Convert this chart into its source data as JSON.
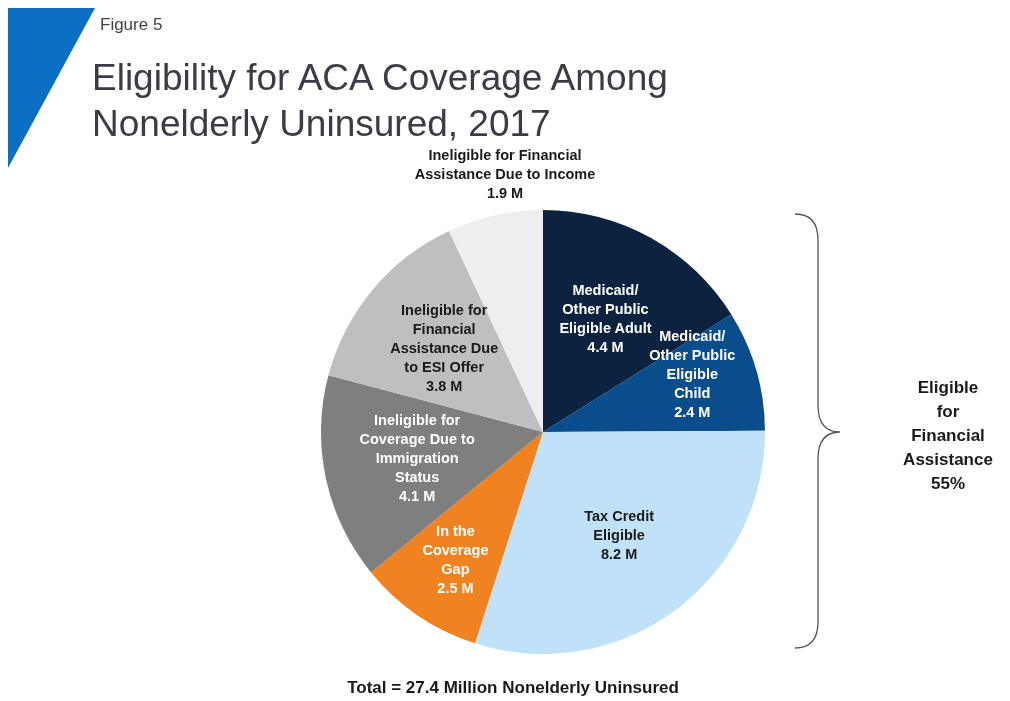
{
  "chart_data": {
    "type": "pie",
    "subtitle": "Figure 5",
    "title": "Eligibility for ACA Coverage Among Nonelderly Uninsured, 2017",
    "categories": [
      "Medicaid/ Other Public Eligible Adult",
      "Medicaid/ Other Public Eligible Child",
      "Tax Credit Eligible",
      "In the Coverage Gap",
      "Ineligible for Coverage Due to Immigration Status",
      "Ineligible for Financial Assistance Due to ESI Offer",
      "Ineligible for Financial Assistance Due to Income"
    ],
    "values": [
      4.4,
      2.4,
      8.2,
      2.5,
      4.1,
      3.8,
      1.9
    ],
    "value_labels": [
      "4.4 M",
      "2.4 M",
      "8.2 M",
      "2.5 M",
      "4.1 M",
      "3.8 M",
      "1.9 M"
    ],
    "colors": [
      "#0c2340",
      "#0a4d8c",
      "#bfe2f8",
      "#f0821f",
      "#7f7f7f",
      "#bfbfbf",
      "#eeeeee"
    ],
    "annotations": [
      "Eligible for Financial Assistance 55%",
      "Total = 27.4 Million Nonelderly Uninsured"
    ]
  }
}
